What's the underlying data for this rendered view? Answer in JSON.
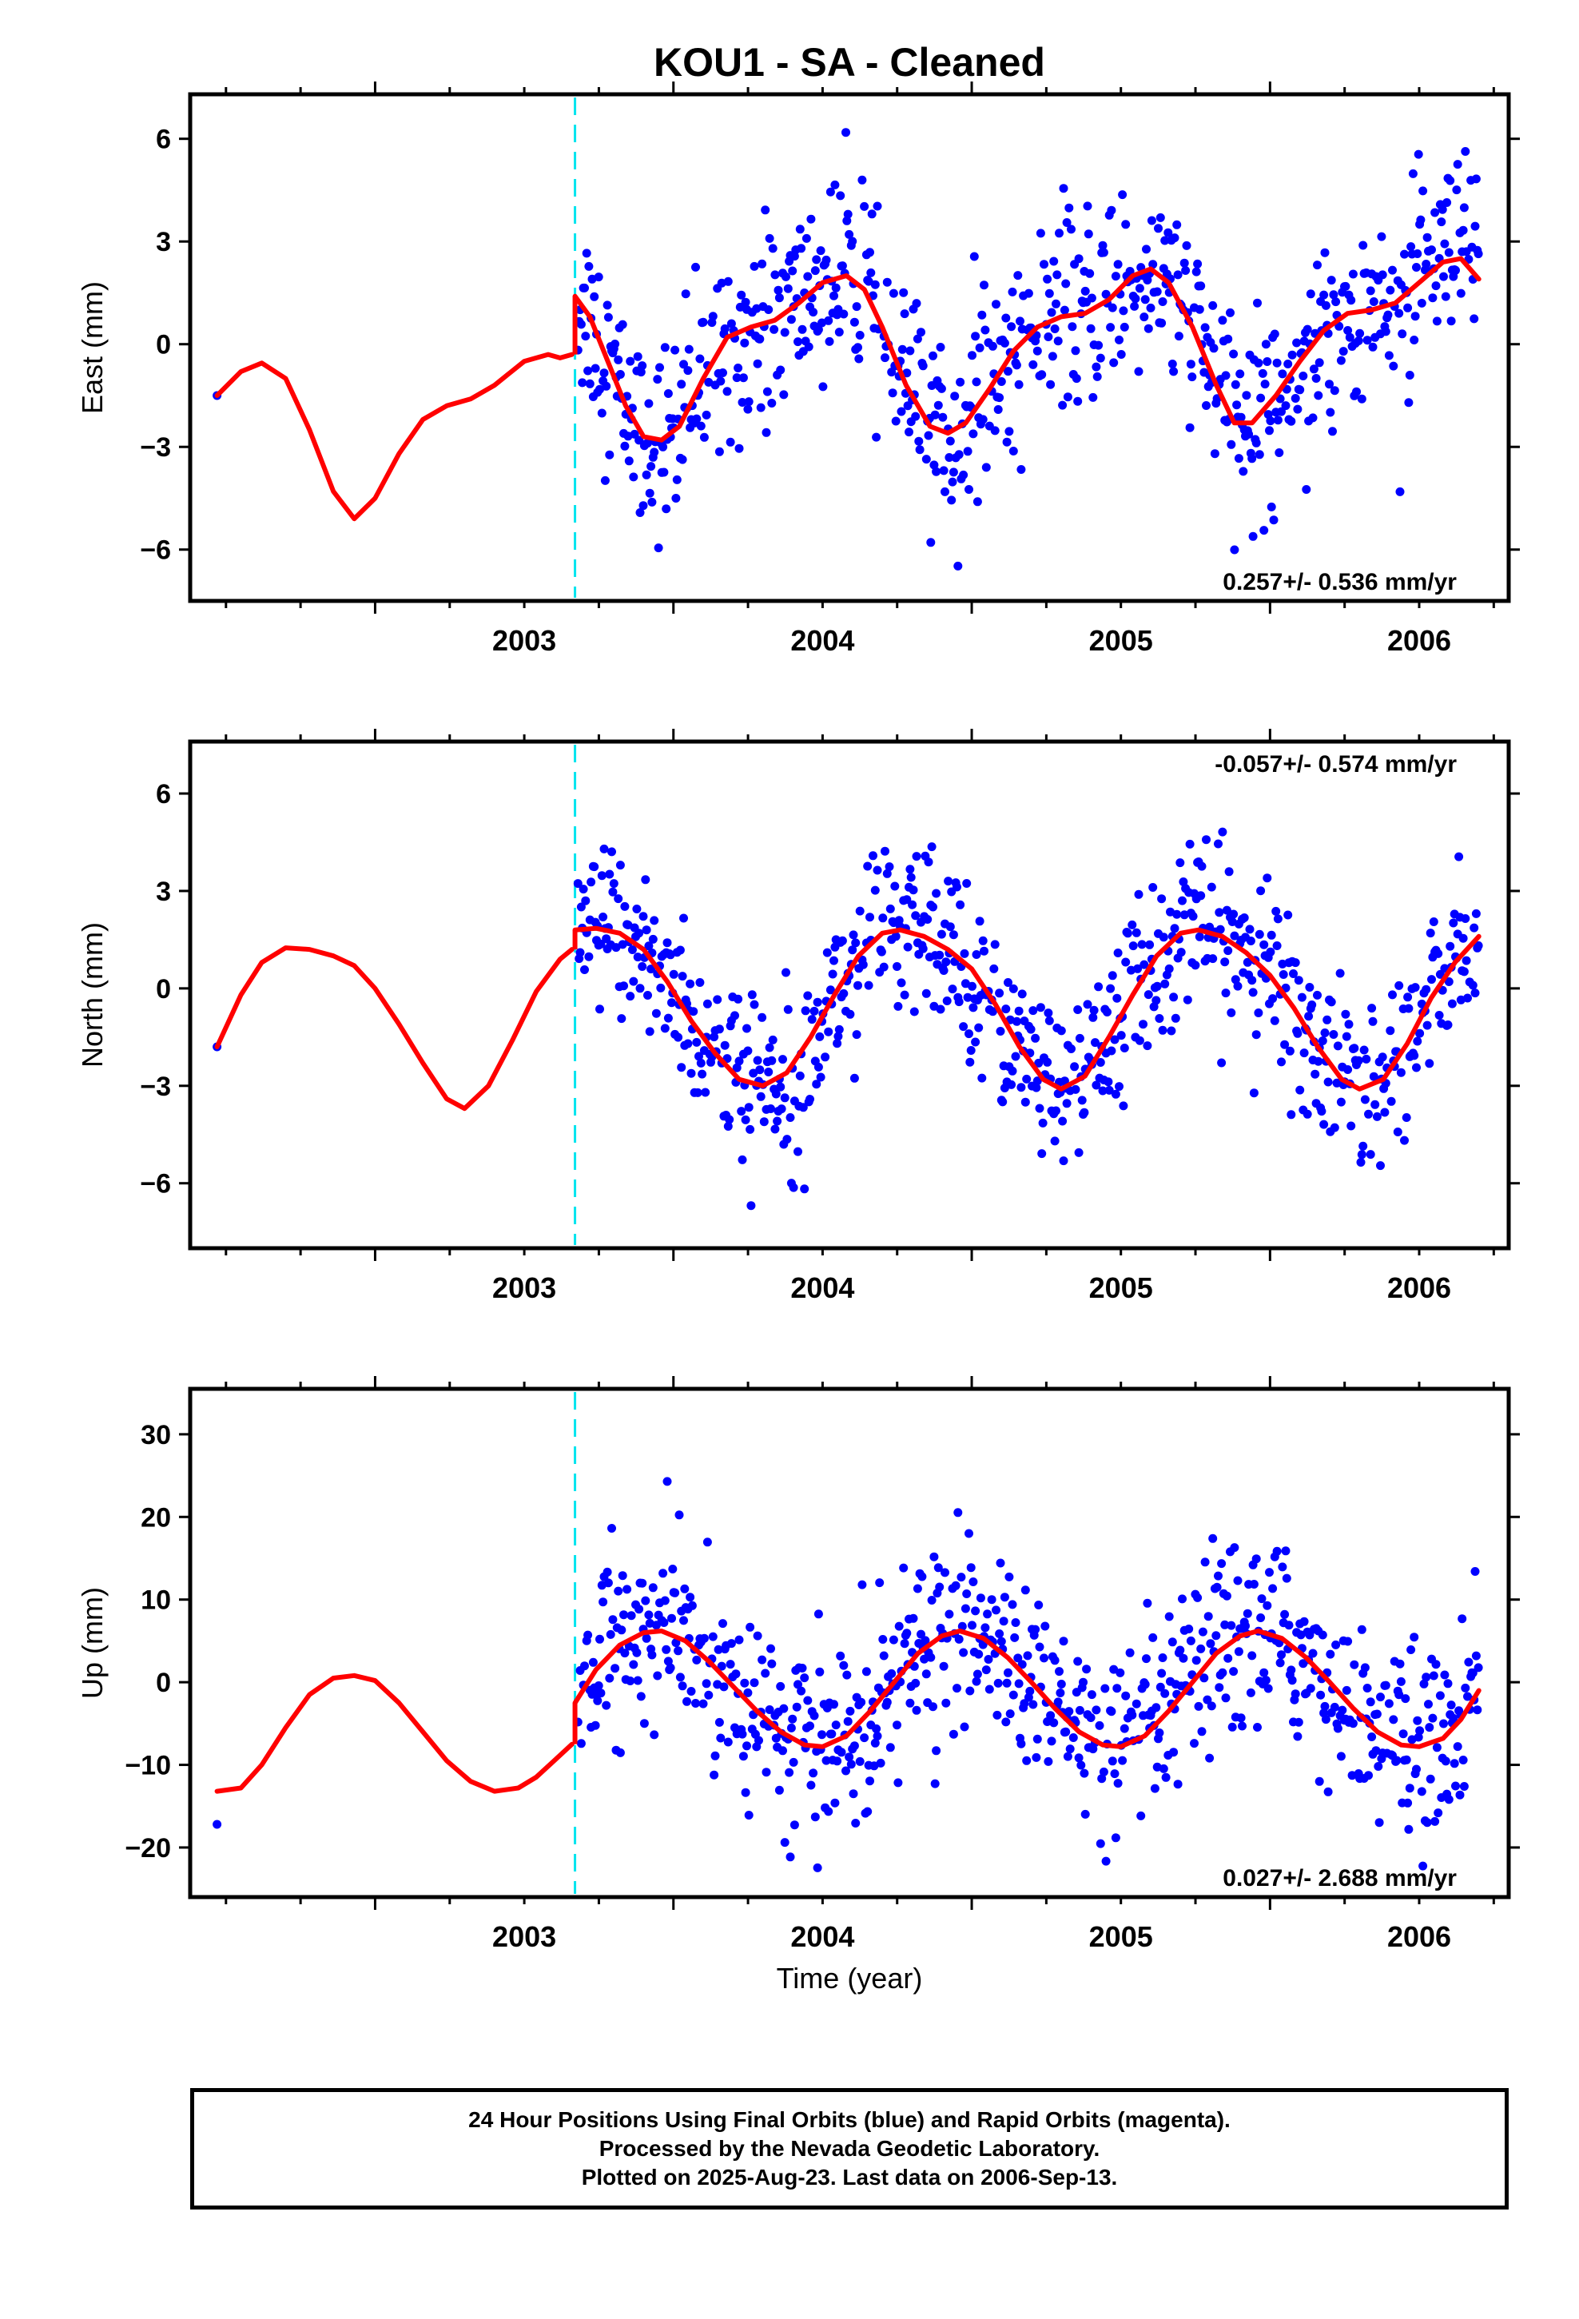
{
  "title": "KOU1  - SA - Cleaned",
  "xlabel": "Time (year)",
  "footer": [
    "24 Hour Positions Using Final Orbits (blue) and Rapid Orbits (magenta).",
    "Processed by the Nevada Geodetic Laboratory.",
    "Plotted on 2025-Aug-23. Last data on 2006-Sep-13."
  ],
  "colors": {
    "points": "#0000ff",
    "model": "#ff0000",
    "break_line": "#00e5ee",
    "frame": "#000000"
  },
  "chart_data": [
    {
      "type": "scatter",
      "component": "east",
      "ylabel": "East (mm)",
      "xlim": [
        2002.38,
        2006.8
      ],
      "ylim": [
        -7.5,
        7.3
      ],
      "yticks": [
        -6,
        -3,
        0,
        3,
        6
      ],
      "yticklabels": [
        "−6",
        "−3",
        "0",
        "3",
        "6"
      ],
      "xticks": [
        2003,
        2004,
        2005,
        2006
      ],
      "xticklabels": [
        "2003",
        "2004",
        "2005",
        "2006"
      ],
      "rate_label": "0.257+/- 0.536 mm/yr",
      "rate_position": "bottom-right",
      "break_epoch": 2003.67,
      "model_pre": {
        "x": [
          2002.47,
          2002.55,
          2002.62,
          2002.7,
          2002.78,
          2002.86,
          2002.93,
          2003.0,
          2003.08,
          2003.16,
          2003.24,
          2003.32,
          2003.4,
          2003.5,
          2003.58,
          2003.62,
          2003.66
        ],
        "y": [
          -1.5,
          -0.8,
          -0.55,
          -1.0,
          -2.5,
          -4.3,
          -5.1,
          -4.5,
          -3.2,
          -2.2,
          -1.8,
          -1.6,
          -1.2,
          -0.5,
          -0.3,
          -0.4,
          -0.3
        ]
      },
      "model_post": {
        "x": [
          2003.67,
          2003.72,
          2003.78,
          2003.84,
          2003.9,
          2003.96,
          2004.02,
          2004.1,
          2004.18,
          2004.26,
          2004.34,
          2004.42,
          2004.5,
          2004.58,
          2004.64,
          2004.7,
          2004.78,
          2004.86,
          2004.92,
          2004.98,
          2005.06,
          2005.14,
          2005.22,
          2005.3,
          2005.38,
          2005.46,
          2005.54,
          2005.6,
          2005.66,
          2005.74,
          2005.82,
          2005.88,
          2005.94,
          2006.02,
          2006.1,
          2006.18,
          2006.26,
          2006.34,
          2006.42,
          2006.5,
          2006.58,
          2006.64,
          2006.7
        ],
        "y": [
          1.4,
          0.8,
          -0.5,
          -1.8,
          -2.7,
          -2.8,
          -2.4,
          -1.0,
          0.2,
          0.5,
          0.7,
          1.2,
          1.8,
          2.0,
          1.6,
          0.5,
          -1.2,
          -2.4,
          -2.6,
          -2.3,
          -1.3,
          -0.2,
          0.5,
          0.8,
          0.9,
          1.3,
          2.0,
          2.2,
          1.8,
          0.5,
          -1.2,
          -2.3,
          -2.3,
          -1.5,
          -0.5,
          0.4,
          0.9,
          1.0,
          1.2,
          1.8,
          2.4,
          2.5,
          1.9
        ]
      }
    },
    {
      "type": "scatter",
      "component": "north",
      "ylabel": "North (mm)",
      "xlim": [
        2002.38,
        2006.8
      ],
      "ylim": [
        -8.0,
        7.6
      ],
      "yticks": [
        -6,
        -3,
        0,
        3,
        6
      ],
      "yticklabels": [
        "−6",
        "−3",
        "0",
        "3",
        "6"
      ],
      "xticks": [
        2003,
        2004,
        2005,
        2006
      ],
      "xticklabels": [
        "2003",
        "2004",
        "2005",
        "2006"
      ],
      "rate_label": "-0.057+/- 0.574 mm/yr",
      "rate_position": "top-right",
      "break_epoch": 2003.67,
      "model_pre": {
        "x": [
          2002.47,
          2002.55,
          2002.62,
          2002.7,
          2002.78,
          2002.86,
          2002.93,
          2003.0,
          2003.08,
          2003.16,
          2003.24,
          2003.3,
          2003.38,
          2003.46,
          2003.54,
          2003.62,
          2003.66
        ],
        "y": [
          -1.8,
          -0.2,
          0.8,
          1.25,
          1.2,
          1.0,
          0.7,
          0.0,
          -1.1,
          -2.3,
          -3.4,
          -3.7,
          -3.0,
          -1.6,
          -0.1,
          0.9,
          1.2
        ]
      },
      "model_post": {
        "x": [
          2003.67,
          2003.74,
          2003.82,
          2003.9,
          2003.98,
          2004.06,
          2004.14,
          2004.22,
          2004.3,
          2004.38,
          2004.46,
          2004.54,
          2004.62,
          2004.7,
          2004.76,
          2004.84,
          2004.92,
          2005.0,
          2005.08,
          2005.16,
          2005.24,
          2005.3,
          2005.38,
          2005.46,
          2005.54,
          2005.62,
          2005.7,
          2005.76,
          2005.84,
          2005.92,
          2006.0,
          2006.08,
          2006.16,
          2006.24,
          2006.3,
          2006.38,
          2006.46,
          2006.54,
          2006.62,
          2006.7
        ],
        "y": [
          1.8,
          1.85,
          1.7,
          1.2,
          0.2,
          -1.0,
          -2.0,
          -2.8,
          -3.0,
          -2.6,
          -1.5,
          -0.2,
          1.0,
          1.7,
          1.8,
          1.6,
          1.2,
          0.6,
          -0.5,
          -1.8,
          -2.8,
          -3.1,
          -2.7,
          -1.5,
          -0.2,
          1.0,
          1.7,
          1.8,
          1.6,
          1.1,
          0.4,
          -0.6,
          -1.8,
          -2.8,
          -3.1,
          -2.8,
          -1.7,
          -0.3,
          0.8,
          1.6
        ]
      }
    },
    {
      "type": "scatter",
      "component": "up",
      "ylabel": "Up (mm)",
      "xlim": [
        2002.38,
        2006.8
      ],
      "ylim": [
        -26.0,
        35.5
      ],
      "yticks": [
        -20,
        -10,
        0,
        10,
        20,
        30
      ],
      "yticklabels": [
        "−20",
        "−10",
        "0",
        "10",
        "20",
        "30"
      ],
      "xticks": [
        2003,
        2004,
        2005,
        2006
      ],
      "xticklabels": [
        "2003",
        "2004",
        "2005",
        "2006"
      ],
      "rate_label": "0.027+/- 2.688 mm/yr",
      "rate_position": "bottom-right",
      "break_epoch": 2003.67,
      "model_pre": {
        "x": [
          2002.47,
          2002.55,
          2002.62,
          2002.7,
          2002.78,
          2002.86,
          2002.93,
          2003.0,
          2003.08,
          2003.16,
          2003.24,
          2003.32,
          2003.4,
          2003.48,
          2003.54,
          2003.6,
          2003.66
        ],
        "y": [
          -13.2,
          -12.8,
          -10.0,
          -5.5,
          -1.5,
          0.5,
          0.8,
          0.2,
          -2.5,
          -6.0,
          -9.5,
          -12.0,
          -13.2,
          -12.8,
          -11.5,
          -9.5,
          -7.5
        ]
      },
      "model_post": {
        "x": [
          2003.67,
          2003.74,
          2003.82,
          2003.9,
          2003.96,
          2004.04,
          2004.12,
          2004.2,
          2004.28,
          2004.36,
          2004.44,
          2004.5,
          2004.58,
          2004.66,
          2004.74,
          2004.82,
          2004.9,
          2004.96,
          2005.04,
          2005.12,
          2005.2,
          2005.28,
          2005.36,
          2005.44,
          2005.5,
          2005.58,
          2005.66,
          2005.74,
          2005.82,
          2005.9,
          2005.96,
          2006.04,
          2006.12,
          2006.2,
          2006.28,
          2006.36,
          2006.44,
          2006.5,
          2006.58,
          2006.64,
          2006.7
        ],
        "y": [
          -2.5,
          1.5,
          4.5,
          6.0,
          6.2,
          5.0,
          2.5,
          -0.5,
          -3.5,
          -6.0,
          -7.6,
          -7.8,
          -6.5,
          -3.5,
          0.0,
          3.5,
          5.6,
          6.2,
          5.3,
          3.0,
          0.0,
          -3.2,
          -6.0,
          -7.6,
          -7.8,
          -6.5,
          -3.5,
          0.0,
          3.5,
          5.6,
          6.2,
          5.3,
          3.0,
          0.0,
          -3.2,
          -6.0,
          -7.6,
          -7.8,
          -6.8,
          -4.5,
          -1.0
        ]
      }
    }
  ]
}
